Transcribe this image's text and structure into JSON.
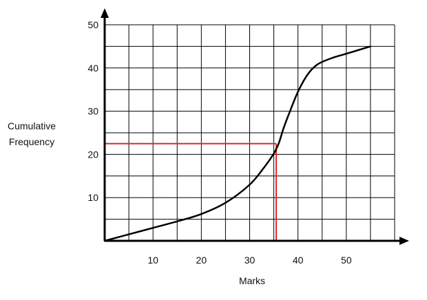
{
  "chart_data": {
    "type": "line",
    "title": "",
    "xlabel": "Marks",
    "ylabel_lines": [
      "Cumulative",
      "Frequency"
    ],
    "xlim": [
      0,
      60
    ],
    "ylim": [
      0,
      50
    ],
    "grid": true,
    "grid_x_step": 5,
    "grid_y_step": 5,
    "x_ticks": [
      10,
      20,
      30,
      40,
      50
    ],
    "y_ticks": [
      10,
      20,
      30,
      40,
      50
    ],
    "x_tick_labels": [
      "10",
      "20",
      "30",
      "40",
      "50"
    ],
    "y_tick_labels": [
      "10",
      "20",
      "30",
      "40",
      "50"
    ],
    "series": [
      {
        "color": "#000000",
        "x": [
          0,
          5,
          10,
          15,
          20,
          25,
          30,
          33,
          35,
          36,
          37,
          38,
          40,
          42,
          44,
          47,
          50,
          55
        ],
        "y": [
          0,
          1.5,
          3,
          4.5,
          6.2,
          8.8,
          13,
          17,
          20.2,
          22.5,
          26,
          29,
          34.5,
          38.5,
          40.8,
          42.3,
          43.3,
          45
        ]
      }
    ],
    "annotations": [
      {
        "type": "reading-guide",
        "color": "#e32626",
        "y": 22.5,
        "x": 35.5
      }
    ]
  }
}
